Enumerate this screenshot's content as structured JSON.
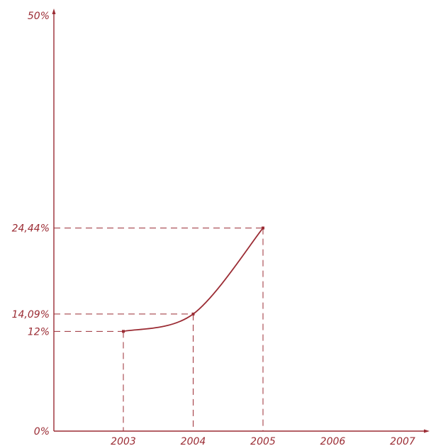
{
  "chart_data": {
    "type": "line",
    "title": "",
    "xlabel": "",
    "ylabel": "",
    "x_ticks": [
      "2003",
      "2004",
      "2005",
      "2006",
      "2007"
    ],
    "y_ticks": [
      "0%",
      "50%"
    ],
    "ylim": [
      0,
      50
    ],
    "grid": false,
    "series": [
      {
        "x": [
          "2003",
          "2004",
          "2005"
        ],
        "values": [
          12,
          14.09,
          24.44
        ],
        "value_labels": [
          "12%",
          "14,09%",
          "24,44%"
        ]
      }
    ],
    "colors": {
      "line": "#9b2c34",
      "axis": "#9b2c34",
      "text": "#9b2c34"
    }
  }
}
